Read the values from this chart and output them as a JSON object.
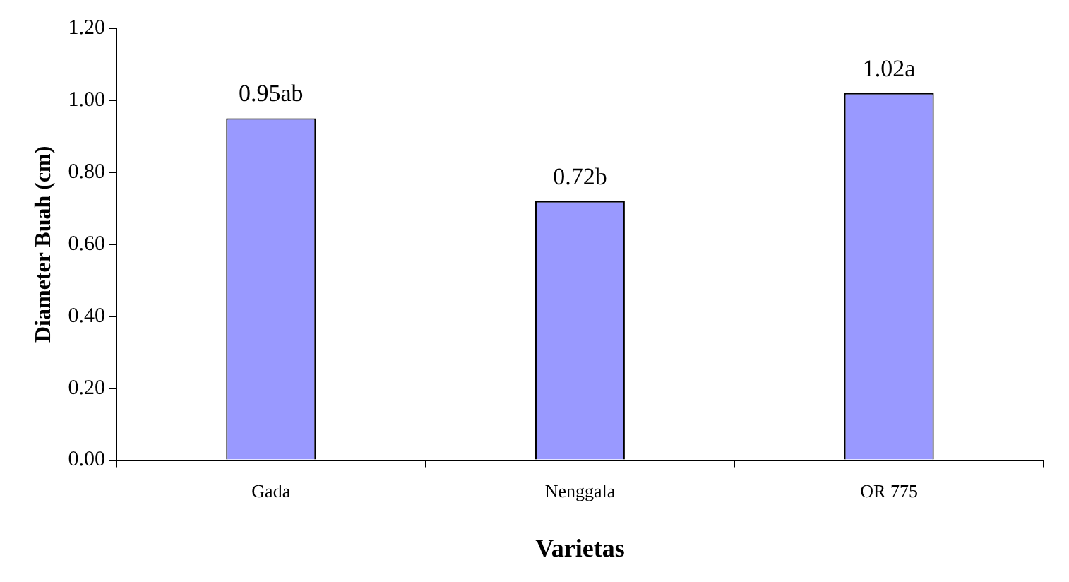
{
  "chart_data": {
    "type": "bar",
    "xlabel": "Varietas",
    "ylabel": "Diameter Buah (cm)",
    "categories": [
      "Gada",
      "Nenggala",
      "OR 775"
    ],
    "values": [
      0.95,
      0.72,
      1.02
    ],
    "value_labels": [
      "0.95ab",
      "0.72b",
      "1.02a"
    ],
    "color": "#9999ff",
    "ylim": [
      0,
      1.2
    ],
    "yticks": [
      {
        "value": 0,
        "label": "0.00"
      },
      {
        "value": 0.2,
        "label": "0.20"
      },
      {
        "value": 0.4,
        "label": "0.40"
      },
      {
        "value": 0.6,
        "label": "0.60"
      },
      {
        "value": 0.8,
        "label": "0.80"
      },
      {
        "value": 1,
        "label": "1.00"
      },
      {
        "value": 1.2,
        "label": "1.20"
      }
    ],
    "grid": false,
    "legend": false
  }
}
